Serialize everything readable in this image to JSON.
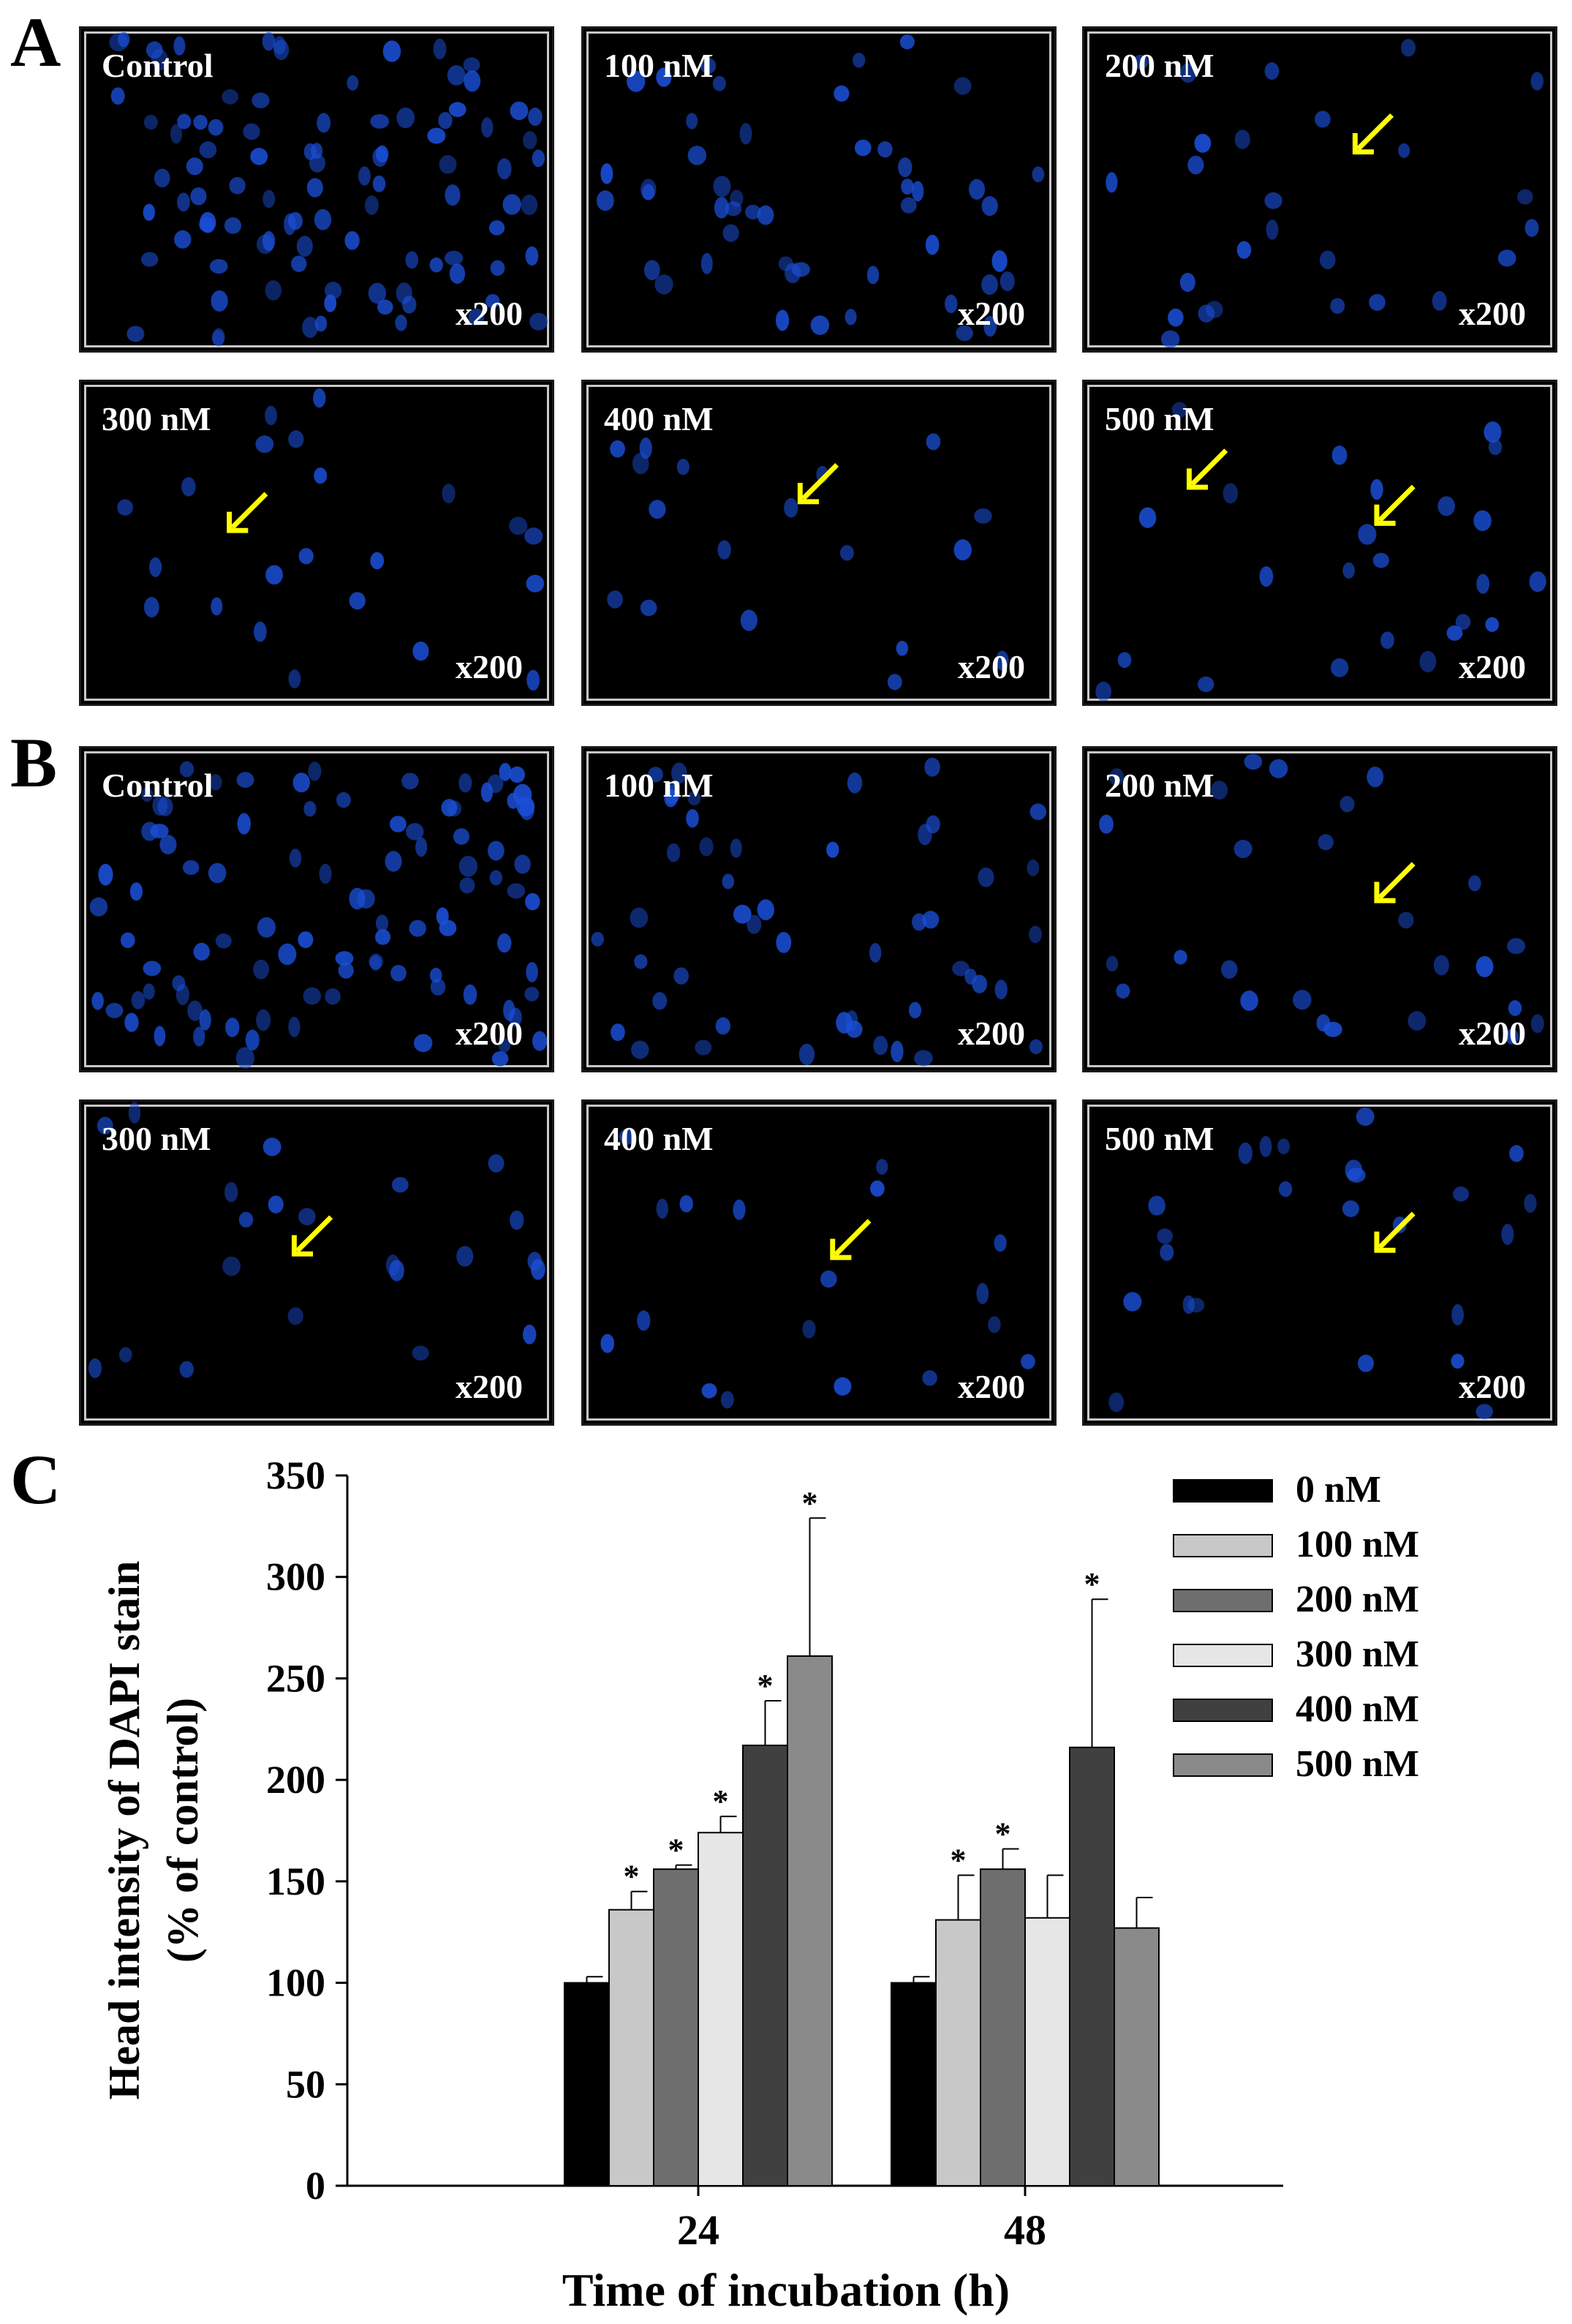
{
  "panels": {
    "A": {
      "letter": "A",
      "images": [
        {
          "label": "Control",
          "mag": "x200"
        },
        {
          "label": "100 nM",
          "mag": "x200"
        },
        {
          "label": "200 nM",
          "mag": "x200"
        },
        {
          "label": "300 nM",
          "mag": "x200"
        },
        {
          "label": "400 nM",
          "mag": "x200"
        },
        {
          "label": "500 nM",
          "mag": "x200"
        }
      ]
    },
    "B": {
      "letter": "B",
      "images": [
        {
          "label": "Control",
          "mag": "x200"
        },
        {
          "label": "100 nM",
          "mag": "x200"
        },
        {
          "label": "200 nM",
          "mag": "x200"
        },
        {
          "label": "300 nM",
          "mag": "x200"
        },
        {
          "label": "400 nM",
          "mag": "x200"
        },
        {
          "label": "500 nM",
          "mag": "x200"
        }
      ]
    },
    "C": {
      "letter": "C"
    }
  },
  "colors": {
    "nucleus": "#1a4fd8",
    "arrow": "#ffff00",
    "background": "#000000"
  },
  "chart_data": {
    "type": "bar",
    "categories": [
      "24",
      "48"
    ],
    "series": [
      {
        "name": "0 nM",
        "values": [
          100,
          100
        ],
        "errors": [
          3,
          3
        ],
        "significant": [
          false,
          false
        ],
        "color": "#000000"
      },
      {
        "name": "100 nM",
        "values": [
          136,
          131
        ],
        "errors": [
          9,
          22
        ],
        "significant": [
          true,
          true
        ],
        "color": "#c8c8c8"
      },
      {
        "name": "200 nM",
        "values": [
          156,
          156
        ],
        "errors": [
          2,
          10
        ],
        "significant": [
          true,
          true
        ],
        "color": "#6e6e6e"
      },
      {
        "name": "300 nM",
        "values": [
          174,
          132
        ],
        "errors": [
          8,
          21
        ],
        "significant": [
          true,
          false
        ],
        "color": "#e6e6e6"
      },
      {
        "name": "400 nM",
        "values": [
          217,
          216
        ],
        "errors": [
          22,
          73
        ],
        "significant": [
          true,
          true
        ],
        "color": "#404040"
      },
      {
        "name": "500 nM",
        "values": [
          261,
          127
        ],
        "errors": [
          68,
          15
        ],
        "significant": [
          true,
          false
        ],
        "color": "#8a8a8a"
      }
    ],
    "xlabel": "Time of incubation (h)",
    "ylabel_line1": "Head intensity of DAPI stain",
    "ylabel_line2": "(% of control)",
    "ylim": [
      0,
      350
    ],
    "yticks": [
      "0",
      "50",
      "100",
      "150",
      "200",
      "250",
      "300",
      "350"
    ],
    "significance_marker": "*",
    "grid": false,
    "legend_position": "top-right"
  }
}
